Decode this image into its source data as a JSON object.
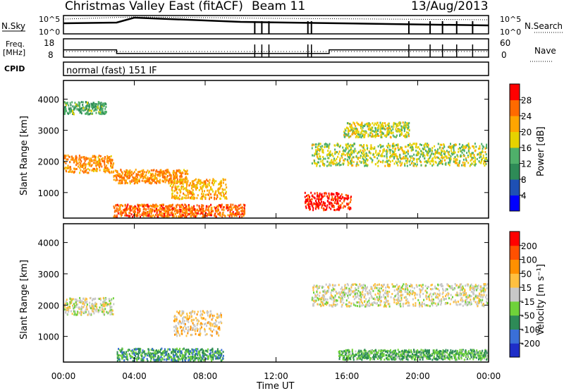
{
  "header": {
    "station": "Christmas Valley East (fitACF)",
    "beam": "Beam 11",
    "date": "13/Aug/2013"
  },
  "top_panels": {
    "nsky_label": "N.Sky",
    "nsearch_label": "N.Search",
    "noise_ticks_left": [
      "10^5",
      "10^0"
    ],
    "noise_ticks_right": [
      "10^5",
      "10^0"
    ],
    "freq_label": "Freq.",
    "freq_unit": "[MHz]",
    "freq_ticks": [
      "18",
      "8"
    ],
    "nave_label": "Nave",
    "nave_ticks": [
      "60",
      "0"
    ],
    "cpid_label": "CPID",
    "cpid_text": "normal (fast) 151 IF"
  },
  "axes": {
    "xlabel": "Time UT",
    "x_ticks": [
      "00:00",
      "04:00",
      "08:00",
      "12:00",
      "16:00",
      "20:00",
      "00:00"
    ],
    "ylabel": "Slant Range [km]",
    "y_ticks": [
      "1000",
      "2000",
      "3000",
      "4000"
    ]
  },
  "colorbars": {
    "power": {
      "label": "Power [dB]",
      "ticks": [
        "4",
        "8",
        "12",
        "16",
        "20",
        "24",
        "28"
      ],
      "colors": [
        "#0000ff",
        "#1e50b4",
        "#2e8b57",
        "#4fb06a",
        "#e6d200",
        "#ffa500",
        "#ff6a00",
        "#ff0000"
      ]
    },
    "velocity": {
      "label": "Velocity [m s⁻¹]",
      "ticks": [
        "200",
        "100",
        "50",
        "15",
        "-15",
        "-50",
        "-100",
        "-200"
      ],
      "colors": [
        "#1e2ec8",
        "#3a6fd8",
        "#2e8b57",
        "#6fd23a",
        "#c8c8c8",
        "#ffc040",
        "#ff9000",
        "#ff5000",
        "#ff0000"
      ]
    }
  },
  "chart_data": {
    "type": "heatmap",
    "title": "Christmas Valley East (fitACF) Beam 11 13/Aug/2013",
    "xlabel": "Time UT",
    "ylabel": "Slant Range [km]",
    "xlim_hours": [
      0,
      24
    ],
    "ylim_km": [
      180,
      4600
    ],
    "panels": [
      {
        "name": "Power [dB]",
        "clim": [
          0,
          30
        ],
        "features": [
          {
            "t": [
              0.0,
              2.8
            ],
            "r_center": 1900,
            "r_width": 350,
            "level": 22
          },
          {
            "t": [
              0.0,
              2.4
            ],
            "r_center": 3700,
            "r_width": 250,
            "level": 12
          },
          {
            "t": [
              2.8,
              7.0
            ],
            "r_center": 1500,
            "r_width": 280,
            "level": 22
          },
          {
            "t": [
              6.0,
              9.2
            ],
            "r_center": 1100,
            "r_width": 400,
            "level": 20
          },
          {
            "t": [
              2.8,
              10.2
            ],
            "r_center": 400,
            "r_width": 250,
            "level": 24
          },
          {
            "t": [
              13.6,
              16.2
            ],
            "r_center": 700,
            "r_width": 350,
            "level": 28
          },
          {
            "t": [
              14.0,
              23.9
            ],
            "r_center": 2200,
            "r_width": 450,
            "level": 16
          },
          {
            "t": [
              15.8,
              19.5
            ],
            "r_center": 3000,
            "r_width": 300,
            "level": 16
          }
        ]
      },
      {
        "name": "Velocity [m s-1]",
        "clim": [
          -200,
          200
        ],
        "features": [
          {
            "t": [
              0.0,
              2.8
            ],
            "r_center": 1950,
            "r_width": 350,
            "level": 0
          },
          {
            "t": [
              6.2,
              8.9
            ],
            "r_center": 1400,
            "r_width": 500,
            "level": 40
          },
          {
            "t": [
              3.0,
              9.0
            ],
            "r_center": 400,
            "r_width": 250,
            "level": -80
          },
          {
            "t": [
              14.0,
              23.9
            ],
            "r_center": 2300,
            "r_width": 450,
            "level": 5
          },
          {
            "t": [
              15.5,
              23.9
            ],
            "r_center": 400,
            "r_width": 200,
            "level": -60
          }
        ]
      }
    ],
    "noise_search_spikes_hours": [
      10.8,
      11.2,
      11.6,
      13.8,
      14.0,
      19.5,
      20.7,
      21.4,
      22.2,
      23.1
    ],
    "freq_mhz": [
      {
        "t": [
          0.0,
          3.0
        ],
        "v": 12
      },
      {
        "t": [
          3.0,
          15.0
        ],
        "v": 10
      },
      {
        "t": [
          15.0,
          24.0
        ],
        "v": 12
      }
    ]
  }
}
